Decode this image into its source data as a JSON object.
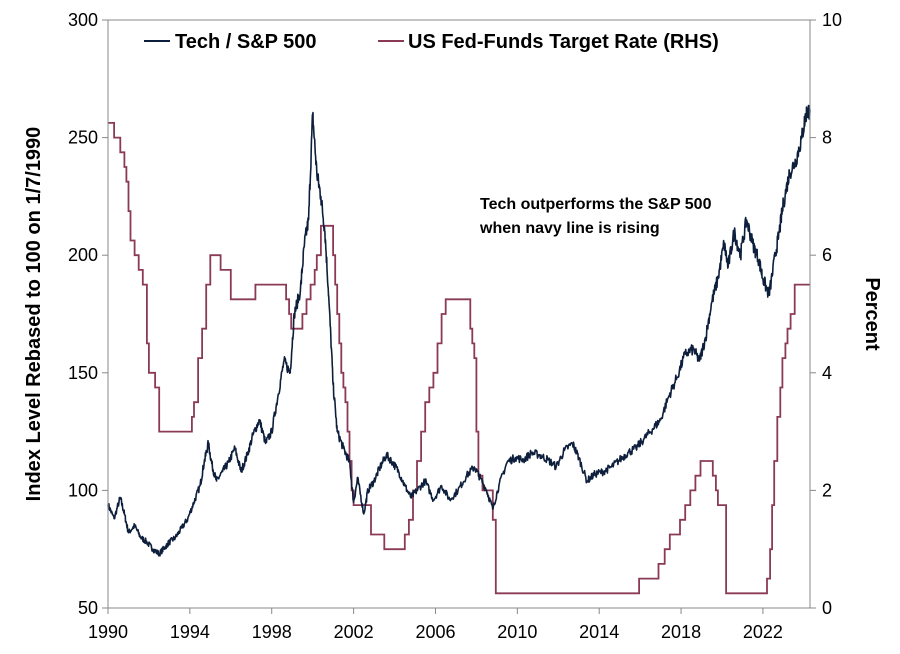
{
  "chart_data": {
    "type": "line",
    "title": "",
    "xlabel": "",
    "ylabel": "Index Level Rebased to 100 on 1/7/1990",
    "y2label": "Percent",
    "xlim": [
      1990,
      2024.3
    ],
    "ylim": [
      50,
      300
    ],
    "y2lim": [
      0,
      10
    ],
    "x_ticks": [
      1990,
      1994,
      1998,
      2002,
      2006,
      2010,
      2014,
      2018,
      2022
    ],
    "y_ticks": [
      50,
      100,
      150,
      200,
      250,
      300
    ],
    "y2_ticks": [
      0,
      2,
      4,
      6,
      8,
      10
    ],
    "grid": false,
    "legend_position": "top-center",
    "annotation": [
      "Tech outperforms the S&P 500",
      "when navy line is rising"
    ],
    "colors": {
      "tech": "#0d1f3c",
      "fed": "#8b3a55"
    },
    "series": [
      {
        "name": "Tech / S&P 500",
        "axis": "left",
        "x": [
          1990.0,
          1990.3,
          1990.6,
          1990.8,
          1991.0,
          1991.3,
          1991.6,
          1991.9,
          1992.2,
          1992.5,
          1992.8,
          1993.0,
          1993.3,
          1993.6,
          1993.9,
          1994.2,
          1994.5,
          1994.7,
          1994.9,
          1995.1,
          1995.3,
          1995.6,
          1995.9,
          1996.2,
          1996.5,
          1996.8,
          1997.1,
          1997.4,
          1997.7,
          1998.0,
          1998.3,
          1998.6,
          1998.9,
          1999.1,
          1999.4,
          1999.6,
          1999.8,
          2000.0,
          2000.2,
          2000.4,
          2000.6,
          2000.8,
          2001.0,
          2001.2,
          2001.5,
          2001.8,
          2002.0,
          2002.2,
          2002.5,
          2002.7,
          2003.0,
          2003.3,
          2003.6,
          2003.9,
          2004.2,
          2004.5,
          2004.8,
          2005.1,
          2005.5,
          2005.9,
          2006.3,
          2006.7,
          2007.1,
          2007.5,
          2007.9,
          2008.2,
          2008.5,
          2008.8,
          2009.1,
          2009.5,
          2009.9,
          2010.3,
          2010.7,
          2011.1,
          2011.5,
          2011.9,
          2012.3,
          2012.7,
          2013.0,
          2013.4,
          2013.8,
          2014.2,
          2014.6,
          2015.0,
          2015.4,
          2015.8,
          2016.2,
          2016.6,
          2017.0,
          2017.4,
          2017.8,
          2018.2,
          2018.6,
          2018.9,
          2019.2,
          2019.5,
          2019.8,
          2020.1,
          2020.3,
          2020.6,
          2020.9,
          2021.2,
          2021.5,
          2021.8,
          2022.0,
          2022.3,
          2022.6,
          2022.8,
          2023.0,
          2023.3,
          2023.6,
          2023.9,
          2024.1,
          2024.3
        ],
        "values": [
          94,
          88,
          97,
          90,
          82,
          85,
          80,
          78,
          75,
          73,
          76,
          78,
          80,
          84,
          88,
          95,
          102,
          112,
          120,
          110,
          104,
          108,
          112,
          118,
          108,
          115,
          124,
          130,
          120,
          125,
          140,
          155,
          150,
          175,
          185,
          205,
          215,
          260,
          235,
          225,
          210,
          180,
          145,
          125,
          118,
          112,
          95,
          105,
          90,
          100,
          104,
          110,
          115,
          112,
          108,
          102,
          97,
          100,
          104,
          96,
          102,
          96,
          100,
          106,
          110,
          105,
          100,
          92,
          102,
          112,
          114,
          113,
          116,
          115,
          113,
          110,
          117,
          120,
          114,
          104,
          107,
          108,
          110,
          113,
          116,
          118,
          122,
          126,
          130,
          140,
          148,
          158,
          160,
          155,
          165,
          180,
          190,
          205,
          195,
          210,
          200,
          215,
          205,
          198,
          190,
          183,
          200,
          210,
          222,
          235,
          240,
          250,
          260,
          262
        ]
      },
      {
        "name": "US Fed-Funds Target Rate (RHS)",
        "axis": "right",
        "x": [
          1990.0,
          1990.3,
          1990.6,
          1990.8,
          1990.9,
          1991.0,
          1991.1,
          1991.3,
          1991.5,
          1991.7,
          1991.9,
          1992.0,
          1992.3,
          1992.5,
          1994.1,
          1994.2,
          1994.4,
          1994.6,
          1994.8,
          1995.0,
          1995.5,
          1996.0,
          1997.2,
          1998.7,
          1998.85,
          1998.95,
          1999.5,
          1999.7,
          1999.9,
          2000.1,
          2000.2,
          2000.4,
          2001.0,
          2001.1,
          2001.2,
          2001.3,
          2001.4,
          2001.5,
          2001.6,
          2001.7,
          2001.8,
          2001.9,
          2002.0,
          2002.85,
          2003.5,
          2004.5,
          2004.7,
          2004.9,
          2005.1,
          2005.3,
          2005.5,
          2005.7,
          2005.9,
          2006.1,
          2006.3,
          2006.5,
          2007.7,
          2007.8,
          2007.9,
          2008.0,
          2008.1,
          2008.3,
          2008.8,
          2008.95,
          2015.95,
          2016.9,
          2017.2,
          2017.45,
          2017.95,
          2018.2,
          2018.45,
          2018.7,
          2018.95,
          2019.55,
          2019.7,
          2019.8,
          2020.2,
          2022.2,
          2022.35,
          2022.45,
          2022.55,
          2022.7,
          2022.85,
          2022.95,
          2023.1,
          2023.2,
          2023.35,
          2023.55,
          2024.3
        ],
        "values": [
          8.25,
          8.0,
          7.75,
          7.5,
          7.25,
          6.75,
          6.25,
          6.0,
          5.75,
          5.5,
          4.5,
          4.0,
          3.75,
          3.0,
          3.25,
          3.5,
          4.25,
          4.75,
          5.5,
          6.0,
          5.75,
          5.25,
          5.5,
          5.25,
          5.0,
          4.75,
          5.0,
          5.25,
          5.5,
          5.75,
          6.0,
          6.5,
          6.0,
          5.5,
          5.0,
          4.5,
          4.0,
          3.75,
          3.5,
          3.0,
          2.5,
          2.0,
          1.75,
          1.25,
          1.0,
          1.25,
          1.5,
          2.0,
          2.5,
          3.0,
          3.5,
          3.75,
          4.0,
          4.5,
          5.0,
          5.25,
          4.75,
          4.5,
          4.25,
          3.0,
          2.25,
          2.0,
          1.5,
          0.25,
          0.5,
          0.75,
          1.0,
          1.25,
          1.5,
          1.75,
          2.0,
          2.25,
          2.5,
          2.25,
          2.0,
          1.75,
          0.25,
          0.5,
          1.0,
          1.75,
          2.5,
          3.25,
          3.75,
          4.25,
          4.5,
          4.75,
          5.0,
          5.5,
          5.5
        ]
      }
    ]
  }
}
